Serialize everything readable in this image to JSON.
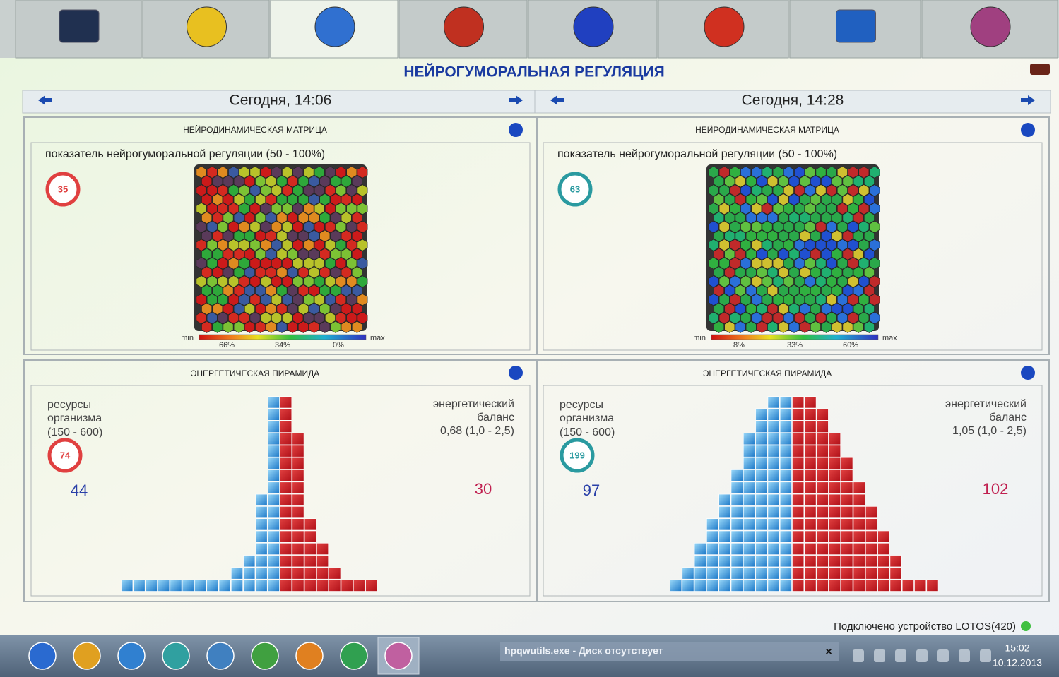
{
  "title": "НЕЙРОГУМОРАЛЬНАЯ РЕГУЛЯЦИЯ",
  "panels": [
    {
      "date": "Сегодня, 14:06",
      "matrix": {
        "title": "НЕЙРОДИНАМИЧЕСКАЯ МАТРИЦА",
        "label": "показатель нейрогуморальной регуляции (50 - 100%)",
        "score": 35,
        "min": "min",
        "max": "max",
        "scale_labels": [
          "66%",
          "34%",
          "0%"
        ]
      },
      "pyramid": {
        "title": "ЭНЕРГЕТИЧЕСКАЯ ПИРАМИДА",
        "resources_label": [
          "ресурсы",
          "организма"
        ],
        "resources_range": "(150 - 600)",
        "score": 74,
        "balance_label": [
          "энергетический",
          "баланс"
        ],
        "balance_value": "0,68 (1,0 - 2,5)",
        "left_value": 44,
        "right_value": 30,
        "blue_columns": [
          1,
          1,
          1,
          1,
          1,
          1,
          1,
          1,
          1,
          2,
          3,
          8,
          16
        ],
        "red_columns": [
          16,
          13,
          6,
          4,
          2,
          1,
          1,
          1
        ]
      }
    },
    {
      "date": "Сегодня, 14:28",
      "matrix": {
        "title": "НЕЙРОДИНАМИЧЕСКАЯ МАТРИЦА",
        "label": "показатель нейрогуморальной регуляции (50 - 100%)",
        "score": 63,
        "min": "min",
        "max": "max",
        "scale_labels": [
          "8%",
          "33%",
          "60%"
        ]
      },
      "pyramid": {
        "title": "ЭНЕРГЕТИЧЕСКАЯ ПИРАМИДА",
        "resources_label": [
          "ресурсы",
          "организма"
        ],
        "resources_range": "(150 - 600)",
        "score": 199,
        "balance_label": [
          "энергетический",
          "баланс"
        ],
        "balance_value": "1,05 (1,0 - 2,5)",
        "left_value": 97,
        "right_value": 102,
        "blue_columns": [
          1,
          2,
          4,
          6,
          8,
          10,
          13,
          15,
          16,
          16
        ],
        "red_columns": [
          16,
          16,
          15,
          13,
          11,
          9,
          7,
          5,
          3,
          1,
          1,
          1
        ]
      }
    }
  ],
  "status": "Подключено устройство LOTOS(420)",
  "taskbar": {
    "notification": "hpqwutils.exe - Диск отсутствует",
    "time": "15:02",
    "date": "10.12.2013"
  }
}
